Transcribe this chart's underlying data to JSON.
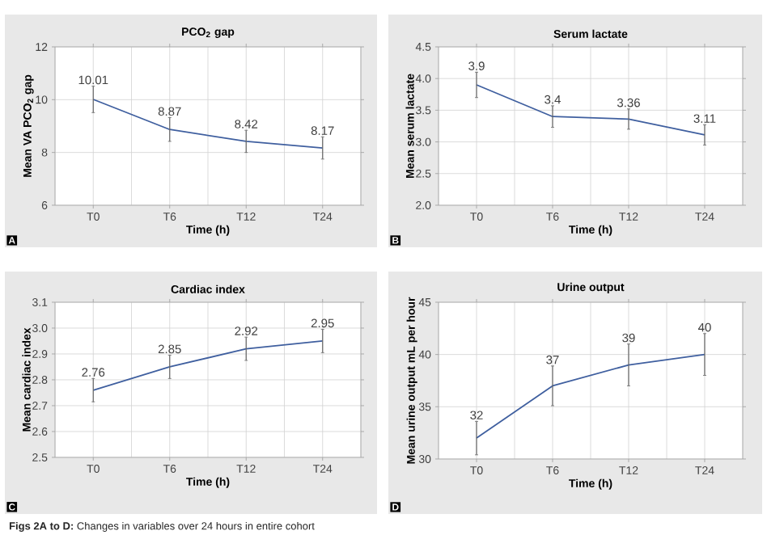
{
  "chart_data": [
    {
      "type": "line",
      "title": "PCO$_{2}$ gap",
      "xlabel": "Time (h)",
      "ylabel": "Mean VA PCO$_{2}$ gap",
      "categories": [
        "T0",
        "T6",
        "T12",
        "T24"
      ],
      "values": [
        10.01,
        8.87,
        8.42,
        8.17
      ],
      "errors": [
        0.5,
        0.45,
        0.42,
        0.42
      ],
      "color": "#3f5f9f",
      "data_labels": true,
      "ylim": [
        6,
        12
      ],
      "yticks": [
        6,
        8,
        10,
        12
      ],
      "grid": true,
      "marker": "none",
      "line_style": "solid",
      "annotations": [
        "A"
      ]
    },
    {
      "type": "line",
      "title": "Serum lactate",
      "xlabel": "Time (h)",
      "ylabel": "Mean serum lactate",
      "categories": [
        "T0",
        "T6",
        "T12",
        "T24"
      ],
      "values": [
        3.9,
        3.4,
        3.36,
        3.11
      ],
      "errors": [
        0.2,
        0.17,
        0.16,
        0.16
      ],
      "color": "#3f5f9f",
      "data_labels": true,
      "ylim": [
        2,
        4.5
      ],
      "yticks": [
        {
          "value": 2,
          "label": "2.0"
        },
        2.5,
        {
          "value": 3,
          "label": "3.0"
        },
        3.5,
        {
          "value": 4,
          "label": "4.0"
        },
        4.5
      ],
      "grid": true,
      "marker": "none",
      "line_style": "solid",
      "annotations": [
        "B"
      ]
    },
    {
      "type": "line",
      "title": "Cardiac index",
      "xlabel": "Time (h)",
      "ylabel": "Mean cardiac index",
      "categories": [
        "T0",
        "T6",
        "T12",
        "T24"
      ],
      "values": [
        2.76,
        2.85,
        2.92,
        2.95
      ],
      "errors": [
        0.045,
        0.045,
        0.045,
        0.045
      ],
      "color": "#3f5f9f",
      "data_labels": true,
      "ylim": [
        2.5,
        3.1
      ],
      "yticks": [
        2.5,
        2.6,
        2.7,
        2.8,
        2.9,
        {
          "value": 3,
          "label": "3.0"
        },
        3.1
      ],
      "grid": true,
      "marker": "none",
      "line_style": "solid",
      "annotations": [
        "C"
      ]
    },
    {
      "type": "line",
      "title": "Urine output",
      "xlabel": "Time (h)",
      "ylabel": "Mean urine output mL per hour",
      "categories": [
        "T0",
        "T6",
        "T12",
        "T24"
      ],
      "values": [
        32,
        37,
        39,
        40
      ],
      "errors": [
        1.6,
        1.9,
        2,
        2
      ],
      "color": "#3f5f9f",
      "data_labels": true,
      "ylim": [
        30,
        45
      ],
      "yticks": [
        30,
        35,
        40,
        45
      ],
      "grid": true,
      "marker": "none",
      "line_style": "solid",
      "annotations": [
        "D",
        "**Figs 2A to D:** Changes in variables over 24 hours in entire cohort"
      ]
    }
  ]
}
